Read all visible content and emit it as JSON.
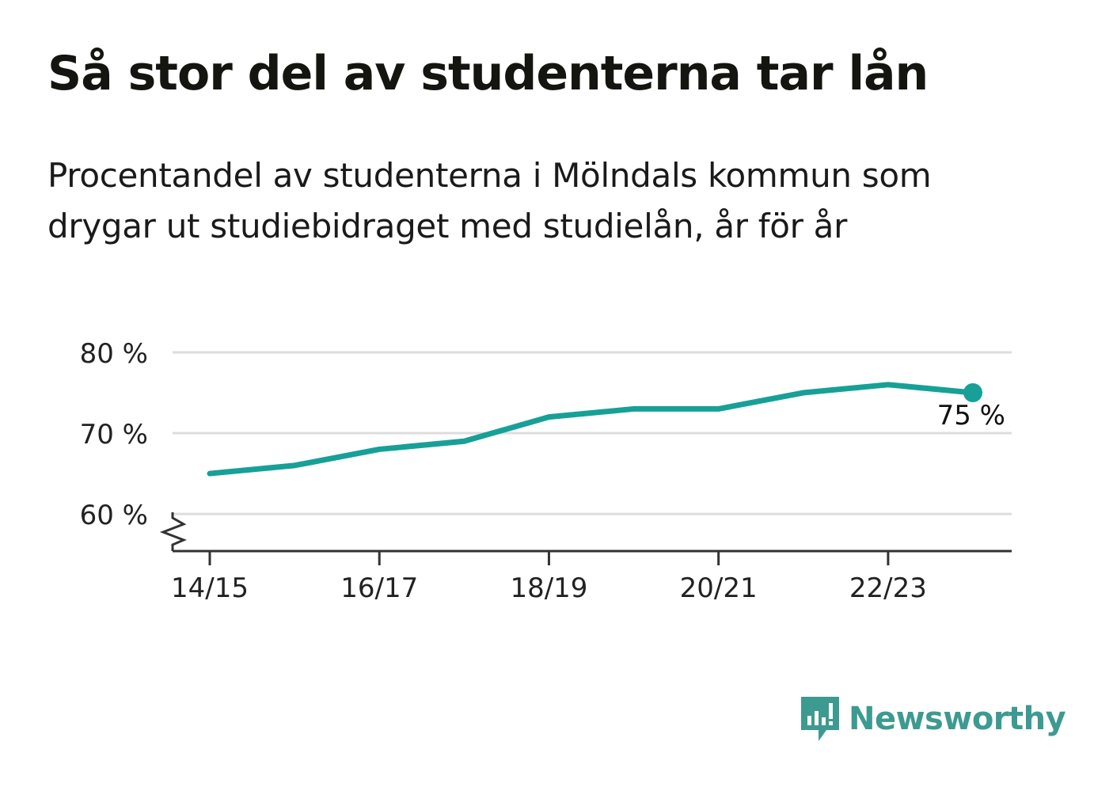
{
  "header": {
    "title": "Så stor del av studenterna tar lån",
    "subtitle": "Procentandel av studenterna i Mölndals kommun som drygar ut studiebidraget med studielån, år för år"
  },
  "chart_data": {
    "type": "line",
    "x": [
      "14/15",
      "15/16",
      "16/17",
      "17/18",
      "18/19",
      "19/20",
      "20/21",
      "21/22",
      "22/23",
      "23/24"
    ],
    "xticks": [
      "14/15",
      "16/17",
      "18/19",
      "20/21",
      "22/23"
    ],
    "series": [
      {
        "values": [
          65,
          66,
          68,
          69,
          72,
          73,
          73,
          75,
          76,
          75
        ]
      }
    ],
    "yticks": [
      60,
      70,
      80
    ],
    "ytick_labels": [
      "60 %",
      "70 %",
      "80 %"
    ],
    "ylim": [
      55.4,
      80
    ],
    "y_axis_break": true,
    "last_value_label": "75 %",
    "grid": true,
    "colors": {
      "line": "#17a097",
      "grid": "#dddddd",
      "axis": "#333333"
    }
  },
  "brand": {
    "name": "Newsworthy",
    "icon": "newsworthy-logo-icon",
    "color": "#3d9a91"
  }
}
